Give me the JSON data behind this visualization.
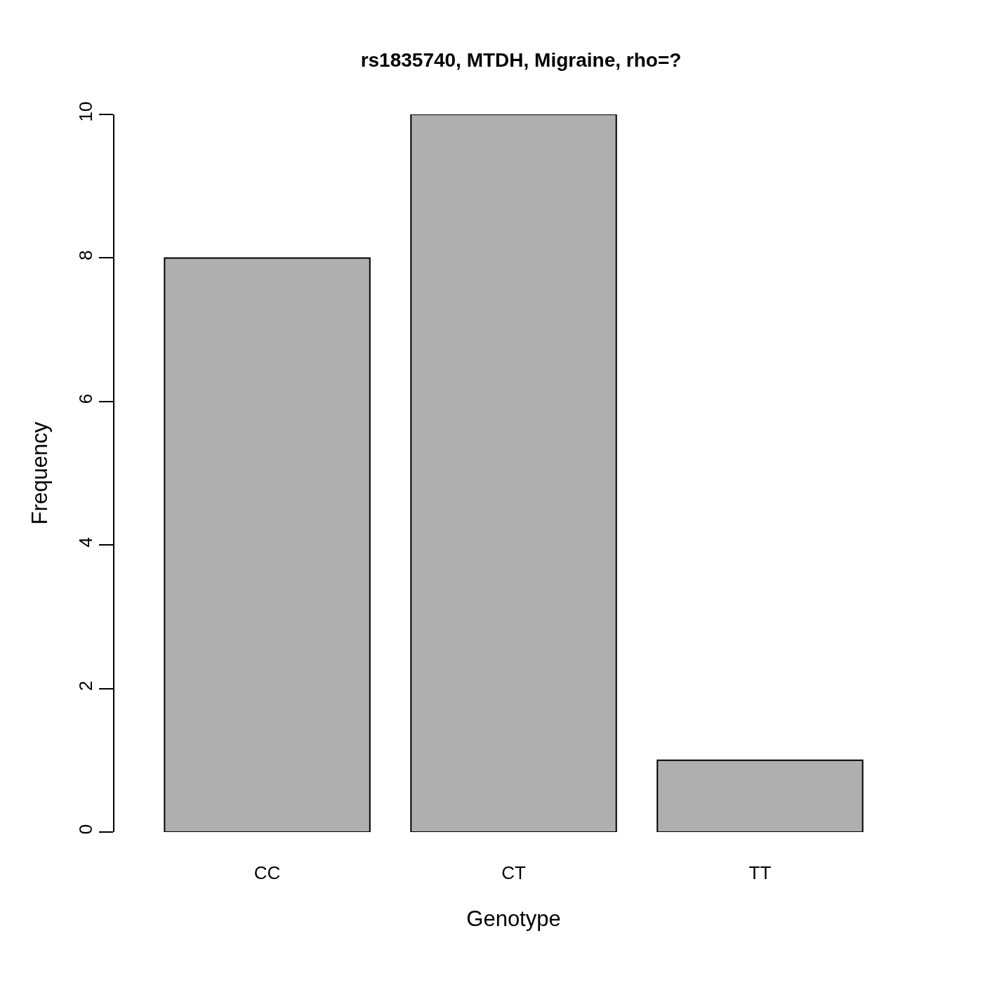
{
  "chart_data": {
    "type": "bar",
    "title": "rs1835740, MTDH, Migraine, rho=?",
    "xlabel": "Genotype",
    "ylabel": "Frequency",
    "categories": [
      "CC",
      "CT",
      "TT"
    ],
    "values": [
      8,
      10,
      1
    ],
    "color": "#afafaf",
    "ylim": [
      0,
      10
    ],
    "yticks": [
      0,
      2,
      4,
      6,
      8,
      10
    ]
  }
}
